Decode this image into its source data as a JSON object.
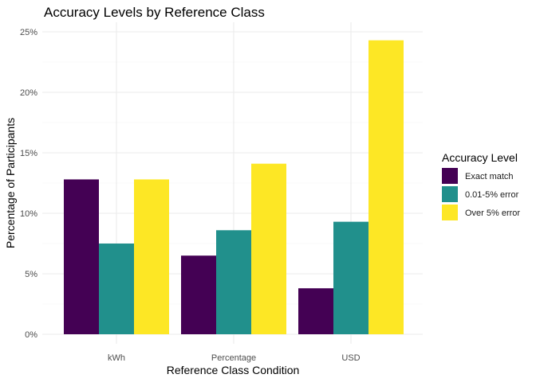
{
  "chart_data": {
    "type": "bar",
    "title": "Accuracy Levels by Reference Class",
    "xlabel": "Reference Class Condition",
    "ylabel": "Percentage of Participants",
    "categories": [
      "kWh",
      "Percentage",
      "USD"
    ],
    "series": [
      {
        "name": "Exact match",
        "color": "#440154",
        "values": [
          12.8,
          6.5,
          3.8
        ]
      },
      {
        "name": "0.01-5% error",
        "color": "#21908C",
        "values": [
          7.5,
          8.6,
          9.3
        ]
      },
      {
        "name": "Over 5% error",
        "color": "#FDE725",
        "values": [
          12.8,
          14.1,
          24.3
        ]
      }
    ],
    "ylim": [
      0,
      25
    ],
    "yticks": [
      0,
      5,
      10,
      15,
      20,
      25
    ],
    "ytick_labels": [
      "0%",
      "5%",
      "10%",
      "15%",
      "20%",
      "25%"
    ],
    "grid": true,
    "legend": {
      "title": "Accuracy Level",
      "position": "right"
    }
  }
}
